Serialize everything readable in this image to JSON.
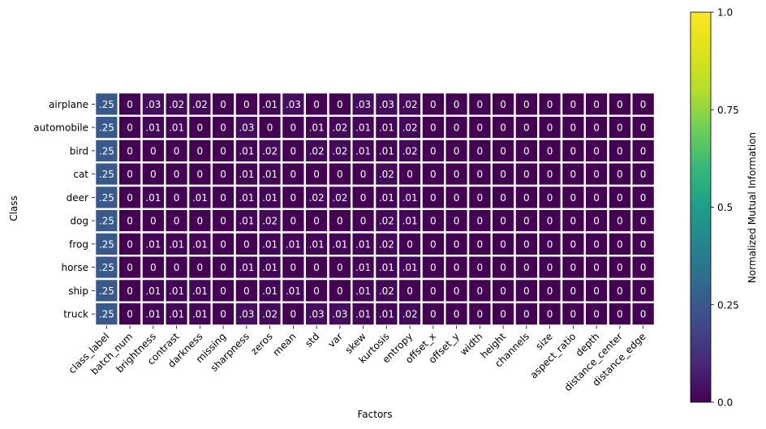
{
  "chart_data": {
    "type": "heatmap",
    "xlabel": "Factors",
    "ylabel": "Class",
    "colorbar_label": "Normalized Mutual Information",
    "colormap": "viridis",
    "clim": [
      0,
      1
    ],
    "colorbar_ticks": [
      "0.0",
      "0.25",
      "0.5",
      "0.75",
      "1.0"
    ],
    "x_categories": [
      "class_label",
      "batch_num",
      "brightness",
      "contrast",
      "darkness",
      "missing",
      "sharpness",
      "zeros",
      "mean",
      "std",
      "var",
      "skew",
      "kurtosis",
      "entropy",
      "offset_x",
      "offset_y",
      "width",
      "height",
      "channels",
      "size",
      "aspect_ratio",
      "depth",
      "distance_center",
      "distance_edge"
    ],
    "y_categories": [
      "airplane",
      "automobile",
      "bird",
      "cat",
      "deer",
      "dog",
      "frog",
      "horse",
      "ship",
      "truck"
    ],
    "values": [
      [
        0.25,
        0,
        0.03,
        0.02,
        0.02,
        0,
        0,
        0.01,
        0.03,
        0,
        0,
        0.03,
        0.03,
        0.02,
        0,
        0,
        0,
        0,
        0,
        0,
        0,
        0,
        0,
        0
      ],
      [
        0.25,
        0,
        0.01,
        0.01,
        0,
        0,
        0.03,
        0,
        0,
        0.01,
        0.02,
        0.01,
        0.01,
        0.02,
        0,
        0,
        0,
        0,
        0,
        0,
        0,
        0,
        0,
        0
      ],
      [
        0.25,
        0,
        0,
        0,
        0,
        0,
        0.01,
        0.02,
        0,
        0.02,
        0.02,
        0.01,
        0.01,
        0.02,
        0,
        0,
        0,
        0,
        0,
        0,
        0,
        0,
        0,
        0
      ],
      [
        0.25,
        0,
        0,
        0,
        0,
        0,
        0.01,
        0.01,
        0,
        0,
        0,
        0,
        0.02,
        0,
        0,
        0,
        0,
        0,
        0,
        0,
        0,
        0,
        0,
        0
      ],
      [
        0.25,
        0,
        0.01,
        0,
        0.01,
        0,
        0.01,
        0.01,
        0,
        0.02,
        0.02,
        0,
        0.01,
        0.01,
        0,
        0,
        0,
        0,
        0,
        0,
        0,
        0,
        0,
        0
      ],
      [
        0.25,
        0,
        0,
        0,
        0,
        0,
        0.01,
        0.02,
        0,
        0,
        0,
        0,
        0.02,
        0.01,
        0,
        0,
        0,
        0,
        0,
        0,
        0,
        0,
        0,
        0
      ],
      [
        0.25,
        0,
        0.01,
        0.01,
        0.01,
        0,
        0,
        0.01,
        0.01,
        0.01,
        0.01,
        0.01,
        0.02,
        0,
        0,
        0,
        0,
        0,
        0,
        0,
        0,
        0,
        0,
        0
      ],
      [
        0.25,
        0,
        0,
        0,
        0,
        0,
        0.01,
        0.01,
        0,
        0,
        0,
        0.01,
        0.01,
        0.01,
        0,
        0,
        0,
        0,
        0,
        0,
        0,
        0,
        0,
        0
      ],
      [
        0.25,
        0,
        0.01,
        0.01,
        0.01,
        0,
        0,
        0.01,
        0.01,
        0,
        0,
        0.01,
        0.02,
        0,
        0,
        0,
        0,
        0,
        0,
        0,
        0,
        0,
        0,
        0
      ],
      [
        0.25,
        0,
        0.01,
        0.01,
        0.01,
        0,
        0.03,
        0.02,
        0,
        0.03,
        0.03,
        0.01,
        0.01,
        0.02,
        0,
        0,
        0,
        0,
        0,
        0,
        0,
        0,
        0,
        0
      ]
    ],
    "annotations": [
      [
        ".25",
        "0",
        ".03",
        ".02",
        ".02",
        "0",
        "0",
        ".01",
        ".03",
        "0",
        "0",
        ".03",
        ".03",
        ".02",
        "0",
        "0",
        "0",
        "0",
        "0",
        "0",
        "0",
        "0",
        "0",
        "0"
      ],
      [
        ".25",
        "0",
        ".01",
        ".01",
        "0",
        "0",
        ".03",
        "0",
        "0",
        ".01",
        ".02",
        ".01",
        ".01",
        ".02",
        "0",
        "0",
        "0",
        "0",
        "0",
        "0",
        "0",
        "0",
        "0",
        "0"
      ],
      [
        ".25",
        "0",
        "0",
        "0",
        "0",
        "0",
        ".01",
        ".02",
        "0",
        ".02",
        ".02",
        ".01",
        ".01",
        ".02",
        "0",
        "0",
        "0",
        "0",
        "0",
        "0",
        "0",
        "0",
        "0",
        "0"
      ],
      [
        ".25",
        "0",
        "0",
        "0",
        "0",
        "0",
        ".01",
        ".01",
        "0",
        "0",
        "0",
        "0",
        ".02",
        "0",
        "0",
        "0",
        "0",
        "0",
        "0",
        "0",
        "0",
        "0",
        "0",
        "0"
      ],
      [
        ".25",
        "0",
        ".01",
        "0",
        ".01",
        "0",
        ".01",
        ".01",
        "0",
        ".02",
        ".02",
        "0",
        ".01",
        ".01",
        "0",
        "0",
        "0",
        "0",
        "0",
        "0",
        "0",
        "0",
        "0",
        "0"
      ],
      [
        ".25",
        "0",
        "0",
        "0",
        "0",
        "0",
        ".01",
        ".02",
        "0",
        "0",
        "0",
        "0",
        ".02",
        ".01",
        "0",
        "0",
        "0",
        "0",
        "0",
        "0",
        "0",
        "0",
        "0",
        "0"
      ],
      [
        ".25",
        "0",
        ".01",
        ".01",
        ".01",
        "0",
        "0",
        ".01",
        ".01",
        ".01",
        ".01",
        ".01",
        ".02",
        "0",
        "0",
        "0",
        "0",
        "0",
        "0",
        "0",
        "0",
        "0",
        "0",
        "0"
      ],
      [
        ".25",
        "0",
        "0",
        "0",
        "0",
        "0",
        ".01",
        ".01",
        "0",
        "0",
        "0",
        ".01",
        ".01",
        ".01",
        "0",
        "0",
        "0",
        "0",
        "0",
        "0",
        "0",
        "0",
        "0",
        "0"
      ],
      [
        ".25",
        "0",
        ".01",
        ".01",
        ".01",
        "0",
        "0",
        ".01",
        ".01",
        "0",
        "0",
        ".01",
        ".02",
        "0",
        "0",
        "0",
        "0",
        "0",
        "0",
        "0",
        "0",
        "0",
        "0",
        "0"
      ],
      [
        ".25",
        "0",
        ".01",
        ".01",
        ".01",
        "0",
        ".03",
        ".02",
        "0",
        ".03",
        ".03",
        ".01",
        ".01",
        ".02",
        "0",
        "0",
        "0",
        "0",
        "0",
        "0",
        "0",
        "0",
        "0",
        "0"
      ]
    ]
  }
}
